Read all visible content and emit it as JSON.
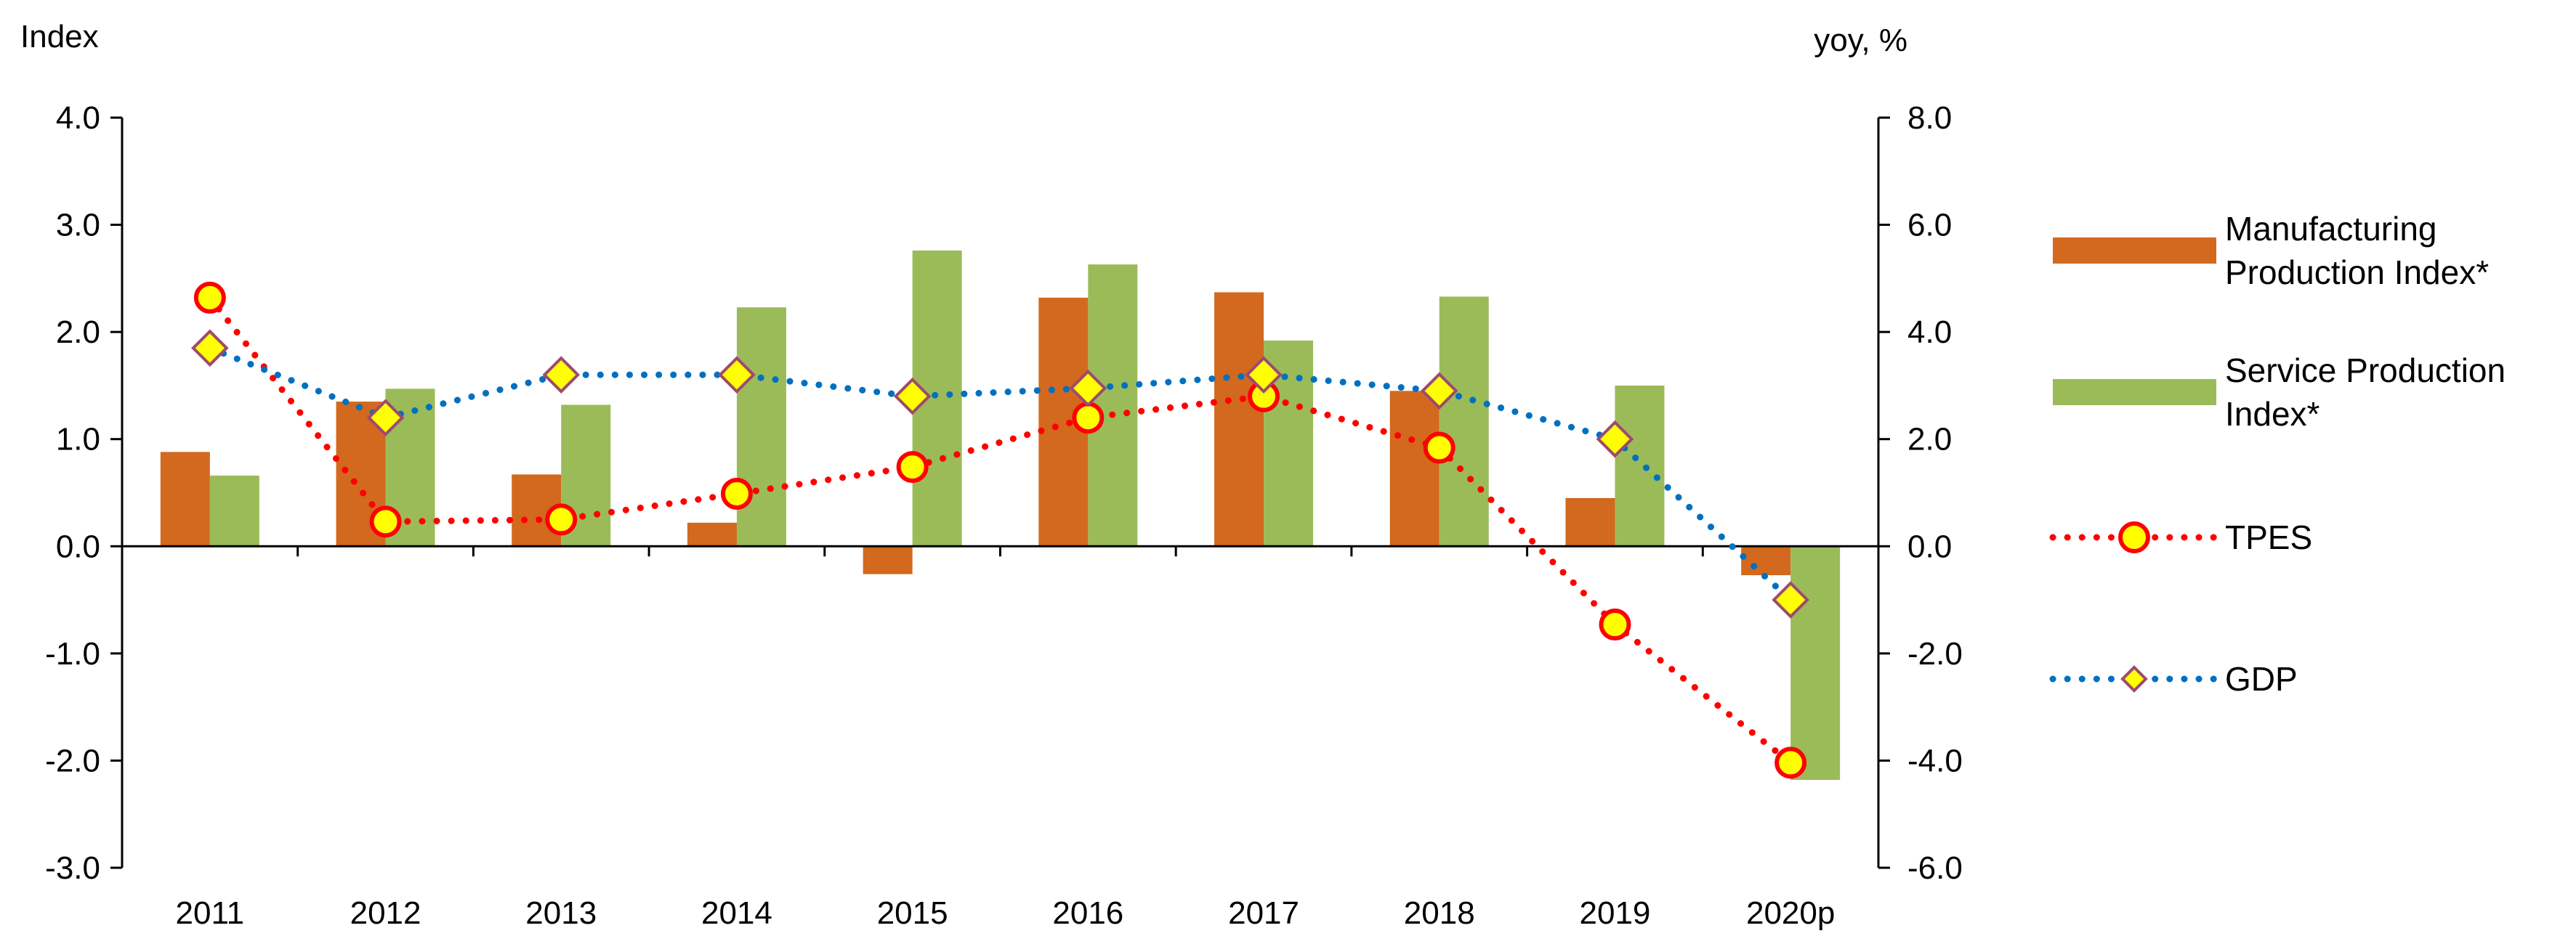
{
  "chart_data": {
    "type": "bar",
    "categories": [
      "2011",
      "2012",
      "2013",
      "2014",
      "2015",
      "2016",
      "2017",
      "2018",
      "2019",
      "2020p"
    ],
    "left_axis": {
      "label": "Index",
      "ylim": [
        -3.0,
        4.0
      ],
      "ticks": [
        "4.0",
        "3.0",
        "2.0",
        "1.0",
        "0.0",
        "-1.0",
        "-2.0",
        "-3.0"
      ]
    },
    "right_axis": {
      "label": "yoy, %",
      "ylim": [
        -6.0,
        8.0
      ],
      "ticks": [
        "8.0",
        "6.0",
        "4.0",
        "2.0",
        "0.0",
        "-2.0",
        "-4.0",
        "-6.0"
      ]
    },
    "series": [
      {
        "name": "Manufacturing Production Index*",
        "legend_lines": [
          "Manufacturing",
          "Production Index*"
        ],
        "kind": "bar",
        "axis": "left",
        "color": "#D2691E",
        "values": [
          0.88,
          1.35,
          0.67,
          0.22,
          -0.26,
          2.32,
          2.37,
          1.45,
          0.45,
          -0.27
        ]
      },
      {
        "name": "Service Production Index*",
        "legend_lines": [
          "Service Production",
          "Index*"
        ],
        "kind": "bar",
        "axis": "left",
        "color": "#9BBB59",
        "values": [
          0.66,
          1.47,
          1.32,
          2.23,
          2.76,
          2.63,
          1.92,
          2.33,
          1.5,
          -2.18
        ]
      },
      {
        "name": "TPES",
        "legend_lines": [
          "TPES"
        ],
        "kind": "line",
        "axis": "right",
        "color": "#FF0000",
        "marker": "circle",
        "marker_fill": "#FFFF00",
        "values": [
          4.64,
          0.46,
          0.5,
          0.98,
          1.48,
          2.4,
          2.8,
          1.84,
          -1.46,
          -4.04
        ]
      },
      {
        "name": "GDP",
        "legend_lines": [
          "GDP"
        ],
        "kind": "line",
        "axis": "right",
        "color": "#0070C0",
        "marker": "diamond",
        "marker_fill": "#FFFF00",
        "values": [
          3.7,
          2.4,
          3.2,
          3.2,
          2.8,
          2.95,
          3.2,
          2.9,
          2.0,
          -1.0
        ]
      }
    ],
    "grid": false,
    "legend_position": "right"
  }
}
